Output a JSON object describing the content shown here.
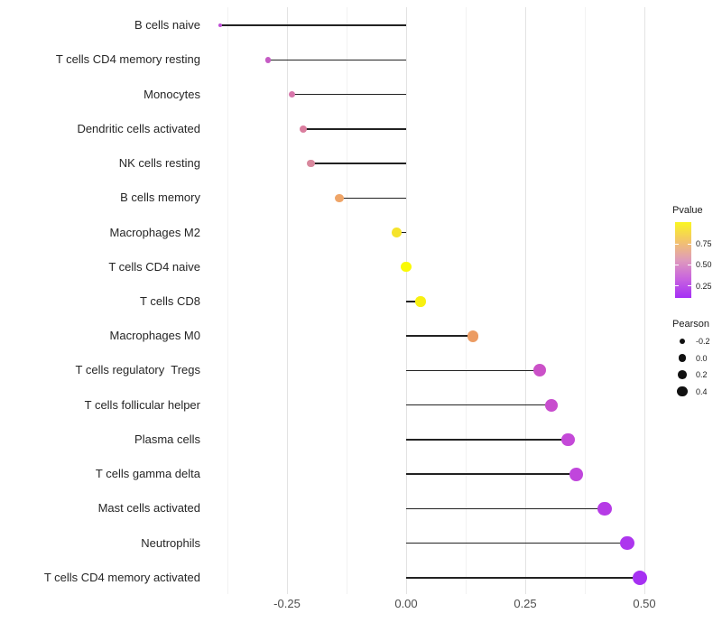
{
  "chart_data": {
    "type": "scatter",
    "subtype": "lollipop",
    "orientation": "horizontal",
    "title": "",
    "xlabel": "",
    "ylabel": "",
    "grid": true,
    "legend_position": "right",
    "categories": [
      "B cells naive",
      "T cells CD4 memory resting",
      "Monocytes",
      "Dendritic cells activated",
      "NK cells resting",
      "B cells memory",
      "Macrophages M2",
      "T cells CD4 naive",
      "T cells CD8",
      "Macrophages M0",
      "T cells regulatory  Tregs",
      "T cells follicular helper",
      "Plasma cells",
      "T cells gamma delta",
      "Mast cells activated",
      "Neutrophils",
      "T cells CD4 memory activated"
    ],
    "series": [
      {
        "name": "Pearson",
        "values": [
          -0.39,
          -0.29,
          -0.24,
          -0.215,
          -0.2,
          -0.14,
          -0.02,
          0.0,
          0.03,
          0.14,
          0.28,
          0.305,
          0.34,
          0.357,
          0.417,
          0.464,
          0.49
        ]
      }
    ],
    "point_colors": [
      "#be4ed5",
      "#c55bc4",
      "#d876ab",
      "#da7d9e",
      "#d8889d",
      "#efa568",
      "#f5e32b",
      "#fafa05",
      "#f8f011",
      "#ec9c63",
      "#cb51c8",
      "#c84dce",
      "#c449d8",
      "#c046dc",
      "#b63be6",
      "#ad36ee",
      "#a631f2"
    ],
    "x_ticks": {
      "values": [
        -0.25,
        0.0,
        0.25,
        0.5
      ],
      "labels": [
        "-0.25",
        "0.00",
        "0.25",
        "0.50"
      ]
    },
    "x_minor_ticks": [
      -0.375,
      -0.125,
      0.125,
      0.375
    ],
    "xlim": [
      -0.44,
      0.54
    ],
    "baseline": 0,
    "color_legend": {
      "title": "Pvalue",
      "tick_labels": [
        "0.75",
        "0.50",
        "0.25"
      ],
      "gradient_top_to_bottom": [
        "#faf621",
        "#f3c46a",
        "#df9bbb",
        "#c863df",
        "#a52ff5"
      ]
    },
    "size_legend": {
      "title": "Pearson",
      "labels": [
        "-0.2",
        "0.0",
        "0.2",
        "0.4"
      ],
      "values": [
        -0.2,
        0.0,
        0.2,
        0.4
      ]
    },
    "colors": {
      "stem": "#222222",
      "grid_major": "#e3e3e3",
      "grid_minor": "#f2f2f2",
      "axis_text": "#4d4d4d",
      "label_text": "#262626",
      "legend_dot": "#111111",
      "background": "#ffffff"
    }
  }
}
